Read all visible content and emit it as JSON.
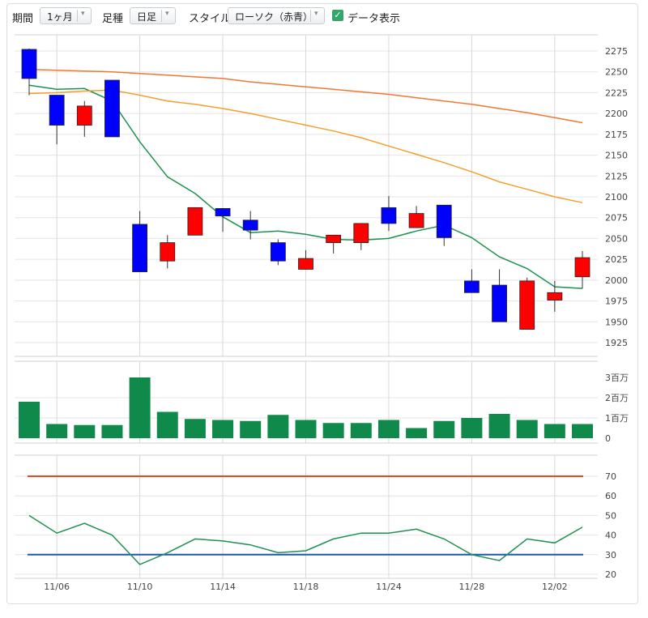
{
  "toolbar": {
    "period_label": "期間",
    "period_value": "1ヶ月",
    "foot_label": "足種",
    "foot_value": "日足",
    "style_label": "スタイル",
    "style_value": "ローソク（赤青）",
    "data_display_label": "データ表示",
    "data_display_checked": true,
    "check_color": "#35a56a"
  },
  "chart_data": [
    {
      "type": "candlestick",
      "ylim": [
        1915,
        2285
      ],
      "yticks": [
        "2275",
        "2250",
        "2225",
        "2200",
        "2175",
        "2150",
        "2125",
        "2100",
        "2075",
        "2050",
        "2025",
        "2000",
        "1975",
        "1950",
        "1925"
      ],
      "xtick_labels": [
        {
          "index": 1,
          "label": "11/06"
        },
        {
          "index": 4,
          "label": "11/10"
        },
        {
          "index": 7,
          "label": "11/14"
        },
        {
          "index": 10,
          "label": "11/18"
        },
        {
          "index": 13,
          "label": "11/24"
        },
        {
          "index": 16,
          "label": "11/28"
        },
        {
          "index": 19,
          "label": "12/02"
        }
      ],
      "up_color": "#ff0000",
      "down_color": "#0000ff",
      "candles": [
        {
          "open": 2277,
          "high": 2278,
          "low": 2222,
          "close": 2242
        },
        {
          "open": 2222,
          "high": 2222,
          "low": 2163,
          "close": 2186
        },
        {
          "open": 2186,
          "high": 2215,
          "low": 2172,
          "close": 2209
        },
        {
          "open": 2240,
          "high": 2240,
          "low": 2172,
          "close": 2172
        },
        {
          "open": 2067,
          "high": 2083,
          "low": 2010,
          "close": 2010
        },
        {
          "open": 2023,
          "high": 2054,
          "low": 2014,
          "close": 2045
        },
        {
          "open": 2054,
          "high": 2087,
          "low": 2054,
          "close": 2087
        },
        {
          "open": 2086,
          "high": 2086,
          "low": 2058,
          "close": 2077
        },
        {
          "open": 2072,
          "high": 2083,
          "low": 2049,
          "close": 2060
        },
        {
          "open": 2045,
          "high": 2049,
          "low": 2018,
          "close": 2023
        },
        {
          "open": 2013,
          "high": 2036,
          "low": 2013,
          "close": 2026
        },
        {
          "open": 2045,
          "high": 2054,
          "low": 2032,
          "close": 2054
        },
        {
          "open": 2045,
          "high": 2068,
          "low": 2036,
          "close": 2068
        },
        {
          "open": 2087,
          "high": 2101,
          "low": 2059,
          "close": 2068
        },
        {
          "open": 2063,
          "high": 2089,
          "low": 2063,
          "close": 2080
        },
        {
          "open": 2090,
          "high": 2090,
          "low": 2041,
          "close": 2051
        },
        {
          "open": 1999,
          "high": 2013,
          "low": 1985,
          "close": 1985
        },
        {
          "open": 1994,
          "high": 2013,
          "low": 1950,
          "close": 1950
        },
        {
          "open": 1941,
          "high": 2003,
          "low": 1941,
          "close": 1999
        },
        {
          "open": 1976,
          "high": 1999,
          "low": 1962,
          "close": 1985
        },
        {
          "open": 2004,
          "high": 2035,
          "low": 1990,
          "close": 2027
        }
      ],
      "moving_averages": [
        {
          "color": "#1e9150",
          "values": [
            2234,
            2229,
            2230,
            2215,
            2166,
            2124,
            2104,
            2076,
            2057,
            2059,
            2055,
            2049,
            2048,
            2050,
            2059,
            2066,
            2051,
            2028,
            2014,
            1992,
            1990
          ]
        },
        {
          "color": "#f0a030",
          "values": [
            2224,
            2225,
            2227,
            2228,
            2222,
            2215,
            2211,
            2206,
            2200,
            2193,
            2186,
            2179,
            2171,
            2161,
            2151,
            2141,
            2130,
            2118,
            2109,
            2100,
            2093
          ]
        },
        {
          "color": "#f07830",
          "values": [
            2253,
            2252,
            2251,
            2250,
            2248,
            2246,
            2244,
            2242,
            2238,
            2235,
            2232,
            2229,
            2226,
            2223,
            2219,
            2215,
            2211,
            2206,
            2201,
            2195,
            2189
          ]
        }
      ]
    },
    {
      "type": "bar",
      "name": "volume",
      "yticks": [
        "3百万",
        "2百万",
        "1百万",
        "0"
      ],
      "ylim": [
        0,
        3000000
      ],
      "color": "#108a4a",
      "values": [
        1800000,
        700000,
        650000,
        650000,
        3000000,
        1300000,
        950000,
        900000,
        850000,
        1150000,
        900000,
        750000,
        750000,
        900000,
        500000,
        850000,
        1000000,
        1200000,
        900000,
        700000,
        700000
      ]
    },
    {
      "type": "line",
      "name": "oscillator",
      "yticks": [
        "70",
        "60",
        "50",
        "40",
        "30",
        "20"
      ],
      "ylim": [
        19,
        74
      ],
      "upper_level": 70,
      "lower_level": 30,
      "upper_color": "#e24a20",
      "lower_color": "#1f56b0",
      "line_color": "#1e9150",
      "values": [
        50,
        41,
        46,
        40,
        25,
        31,
        38,
        37,
        35,
        31,
        32,
        38,
        41,
        41,
        43,
        38,
        30,
        27,
        38,
        36,
        44
      ]
    }
  ]
}
